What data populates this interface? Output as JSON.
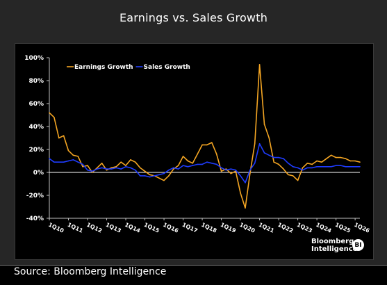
{
  "header": {
    "title": "Earnings vs. Sales Growth"
  },
  "footer": {
    "source": "Source: Bloomberg Intelligence"
  },
  "brand": {
    "line1": "Bloomberg",
    "line2": "Intelligence",
    "badge": "BI"
  },
  "chart_data": {
    "type": "line",
    "title": "Earnings vs. Sales Growth",
    "xlabel": "",
    "ylabel": "",
    "ylim": [
      -40,
      100
    ],
    "yticks": [
      "-40%",
      "-20%",
      "0%",
      "20%",
      "40%",
      "60%",
      "80%",
      "100%"
    ],
    "yticks_values": [
      -40,
      -20,
      0,
      20,
      40,
      60,
      80,
      100
    ],
    "x_tick_labels": [
      "1Q10",
      "1Q11",
      "1Q12",
      "1Q13",
      "1Q14",
      "1Q15",
      "1Q16",
      "1Q17",
      "1Q18",
      "1Q19",
      "1Q20",
      "1Q21",
      "1Q22",
      "1Q23",
      "1Q24",
      "1Q25",
      "1Q26"
    ],
    "grid": false,
    "legend_position": "top-left",
    "series": [
      {
        "name": "Earnings Growth",
        "color": "#f5a623",
        "x": [
          2010.0,
          2010.25,
          2010.5,
          2010.75,
          2011.0,
          2011.25,
          2011.5,
          2011.75,
          2012.0,
          2012.25,
          2012.5,
          2012.75,
          2013.0,
          2013.25,
          2013.5,
          2013.75,
          2014.0,
          2014.25,
          2014.5,
          2014.75,
          2015.0,
          2015.25,
          2015.5,
          2015.75,
          2016.0,
          2016.25,
          2016.5,
          2016.75,
          2017.0,
          2017.25,
          2017.5,
          2017.75,
          2018.0,
          2018.25,
          2018.5,
          2018.75,
          2019.0,
          2019.25,
          2019.5,
          2019.75,
          2020.0,
          2020.25,
          2020.5,
          2020.75,
          2021.0,
          2021.25,
          2021.5,
          2021.75,
          2022.0,
          2022.25,
          2022.5,
          2022.75,
          2023.0,
          2023.25,
          2023.5,
          2023.75,
          2024.0,
          2024.25,
          2024.5,
          2024.75,
          2025.0,
          2025.25,
          2025.5,
          2025.75,
          2026.0,
          2026.25
        ],
        "values": [
          52,
          48,
          30,
          32,
          19,
          15,
          14,
          5,
          6,
          0,
          4,
          8,
          2,
          4,
          5,
          9,
          6,
          11,
          9,
          4,
          1,
          -2,
          -3,
          -5,
          -7,
          -3,
          3,
          6,
          14,
          10,
          8,
          16,
          24,
          24,
          26,
          16,
          1,
          3,
          -1,
          1,
          -18,
          -31,
          -1,
          25,
          94,
          42,
          30,
          9,
          7,
          3,
          -2,
          -3,
          -7,
          4,
          8,
          7,
          10,
          9,
          12,
          15,
          13,
          13,
          12,
          10,
          10,
          9
        ]
      },
      {
        "name": "Sales Growth",
        "color": "#1f3cff",
        "x": [
          2010.0,
          2010.25,
          2010.5,
          2010.75,
          2011.0,
          2011.25,
          2011.5,
          2011.75,
          2012.0,
          2012.25,
          2012.5,
          2012.75,
          2013.0,
          2013.25,
          2013.5,
          2013.75,
          2014.0,
          2014.25,
          2014.5,
          2014.75,
          2015.0,
          2015.25,
          2015.5,
          2015.75,
          2016.0,
          2016.25,
          2016.5,
          2016.75,
          2017.0,
          2017.25,
          2017.5,
          2017.75,
          2018.0,
          2018.25,
          2018.5,
          2018.75,
          2019.0,
          2019.25,
          2019.5,
          2019.75,
          2020.0,
          2020.25,
          2020.5,
          2020.75,
          2021.0,
          2021.25,
          2021.5,
          2021.75,
          2022.0,
          2022.25,
          2022.5,
          2022.75,
          2023.0,
          2023.25,
          2023.5,
          2023.75,
          2024.0,
          2024.25,
          2024.5,
          2024.75,
          2025.0,
          2025.25,
          2025.5,
          2025.75,
          2026.0,
          2026.25
        ],
        "values": [
          12,
          9,
          9,
          9,
          10,
          11,
          9,
          7,
          2,
          1,
          3,
          4,
          3,
          3,
          4,
          3,
          5,
          4,
          2,
          -3,
          -3,
          -4,
          -3,
          -2,
          -1,
          2,
          4,
          3,
          6,
          5,
          6,
          7,
          7,
          9,
          8,
          7,
          4,
          2,
          3,
          2,
          -3,
          -9,
          2,
          8,
          25,
          17,
          15,
          13,
          13,
          12,
          8,
          5,
          4,
          2,
          4,
          4,
          5,
          5,
          5,
          5,
          6,
          6,
          5,
          5,
          5,
          5
        ]
      }
    ]
  }
}
